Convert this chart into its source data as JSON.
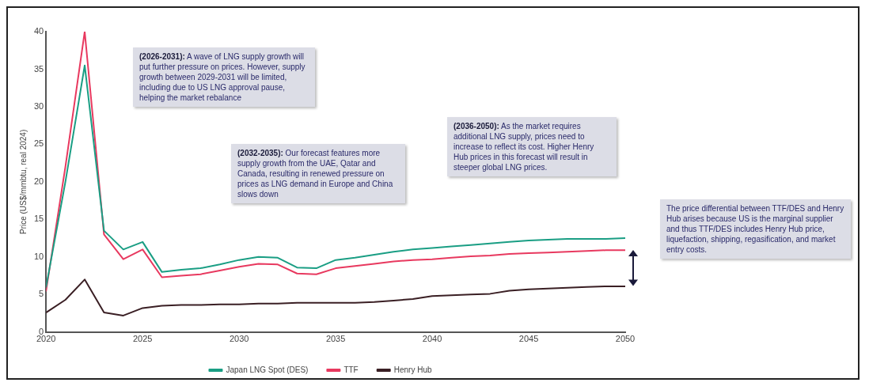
{
  "chart_data": {
    "type": "line",
    "ylabel": "Price (US$/mmbtu, real 2024)",
    "x": [
      2020,
      2021,
      2022,
      2023,
      2024,
      2025,
      2026,
      2027,
      2028,
      2029,
      2030,
      2031,
      2032,
      2033,
      2034,
      2035,
      2036,
      2037,
      2038,
      2039,
      2040,
      2041,
      2042,
      2043,
      2044,
      2045,
      2046,
      2047,
      2048,
      2049,
      2050
    ],
    "series": [
      {
        "name": "Japan LNG Spot (DES)",
        "color": "#1a9e84",
        "values": [
          6,
          20,
          35.5,
          13.5,
          11,
          12,
          8,
          8.3,
          8.5,
          9,
          9.6,
          10,
          9.9,
          8.6,
          8.5,
          9.6,
          9.9,
          10.3,
          10.7,
          11,
          11.2,
          11.4,
          11.6,
          11.8,
          12,
          12.2,
          12.3,
          12.4,
          12.4,
          12.4,
          12.5
        ]
      },
      {
        "name": "TTF",
        "color": "#e8395f",
        "values": [
          5.5,
          22,
          40,
          13,
          9.7,
          11,
          7.3,
          7.5,
          7.7,
          8.2,
          8.7,
          9.1,
          9,
          7.8,
          7.7,
          8.5,
          8.8,
          9.1,
          9.4,
          9.6,
          9.7,
          9.9,
          10.1,
          10.2,
          10.4,
          10.5,
          10.6,
          10.7,
          10.8,
          10.9,
          10.9
        ]
      },
      {
        "name": "Henry Hub",
        "color": "#3a1f24",
        "values": [
          2.6,
          4.3,
          7,
          2.6,
          2.2,
          3.2,
          3.5,
          3.6,
          3.6,
          3.7,
          3.7,
          3.8,
          3.8,
          3.9,
          3.9,
          3.9,
          3.9,
          4,
          4.2,
          4.4,
          4.8,
          4.9,
          5,
          5.1,
          5.5,
          5.7,
          5.8,
          5.9,
          6,
          6.1,
          6.1
        ]
      }
    ],
    "xlim": [
      2020,
      2050
    ],
    "xticks": [
      2020,
      2025,
      2030,
      2035,
      2040,
      2045,
      2050
    ],
    "ylim": [
      0,
      40
    ],
    "yticks": [
      0,
      5,
      10,
      15,
      20,
      25,
      30,
      35,
      40
    ],
    "grid": false,
    "legend": "bottom",
    "marker": "none",
    "line_style": "solid",
    "annotations": [
      "(2026-2031): A wave of LNG supply growth will put further pressure on prices. However, supply growth between 2029-2031 will be limited, including due to US LNG approval pause, helping the market rebalance",
      "(2032-2035): Our forecast features more supply growth from the UAE, Qatar and Canada, resulting in renewed pressure on prices as LNG demand in Europe and China slows down",
      "(2036-2050): As the market requires additional LNG supply, prices need to increase to reflect its cost. Higher Henry Hub prices in this forecast will result in steeper global LNG prices.",
      "The price differential between TTF/DES and Henry Hub arises because US is the marginal supplier and thus TTF/DES includes Henry Hub price, liquefaction, shipping, regasification, and market entry costs."
    ]
  }
}
